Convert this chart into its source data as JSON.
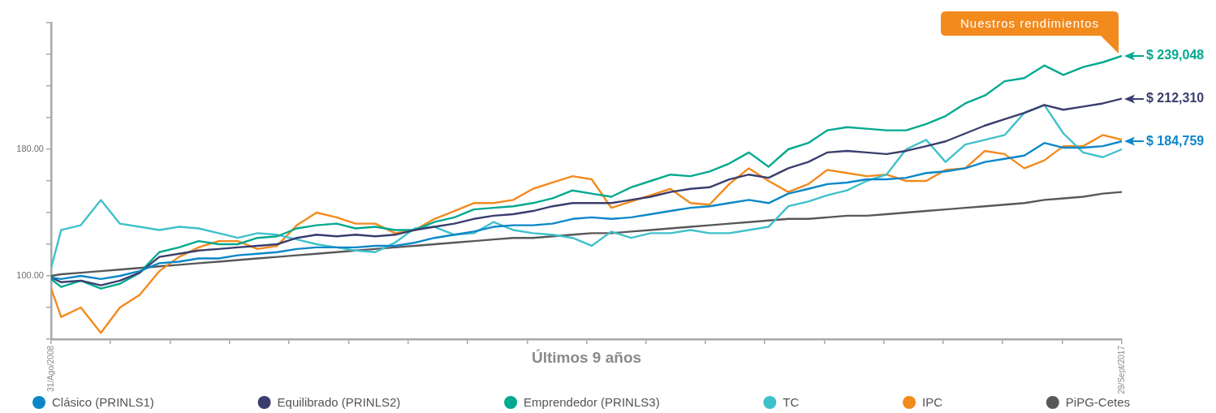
{
  "chart_data": {
    "type": "line",
    "xlabel": "Últimos 9 años",
    "legend": "bottom",
    "x": [
      "2008-08-31",
      "2008-10",
      "2008-12",
      "2009-02",
      "2009-04",
      "2009-06",
      "2009-08",
      "2009-10",
      "2009-12",
      "2010-02",
      "2010-04",
      "2010-06",
      "2010-08",
      "2010-10",
      "2010-12",
      "2011-02",
      "2011-04",
      "2011-06",
      "2011-08",
      "2011-10",
      "2011-12",
      "2012-02",
      "2012-04",
      "2012-06",
      "2012-08",
      "2012-10",
      "2012-12",
      "2013-02",
      "2013-04",
      "2013-06",
      "2013-08",
      "2013-10",
      "2013-12",
      "2014-02",
      "2014-04",
      "2014-06",
      "2014-08",
      "2014-10",
      "2014-12",
      "2015-02",
      "2015-04",
      "2015-06",
      "2015-08",
      "2015-10",
      "2015-12",
      "2016-02",
      "2016-04",
      "2016-06",
      "2016-08",
      "2016-10",
      "2016-12",
      "2017-02",
      "2017-04",
      "2017-06",
      "2017-08",
      "2017-09-29"
    ],
    "xlim": [
      "2008-08-31",
      "2017-09-29"
    ],
    "xticks": [
      {
        "value": "2008-08-31",
        "label": "31/Ago/2008"
      },
      {
        "value": "2009-03-03",
        "label": null
      },
      {
        "value": "2009-09-03",
        "label": null
      },
      {
        "value": "2010-03-07",
        "label": null
      },
      {
        "value": "2010-09-07",
        "label": null
      },
      {
        "value": "2011-03-10",
        "label": null
      },
      {
        "value": "2011-09-10",
        "label": null
      },
      {
        "value": "2012-03-12",
        "label": null
      },
      {
        "value": "2012-09-13",
        "label": null
      },
      {
        "value": "2013-03-16",
        "label": null
      },
      {
        "value": "2013-09-16",
        "label": null
      },
      {
        "value": "2014-03-19",
        "label": null
      },
      {
        "value": "2014-09-19",
        "label": null
      },
      {
        "value": "2015-03-22",
        "label": null
      },
      {
        "value": "2015-09-22",
        "label": null
      },
      {
        "value": "2016-03-24",
        "label": null
      },
      {
        "value": "2016-09-24",
        "label": null
      },
      {
        "value": "2017-03-28",
        "label": null
      },
      {
        "value": "2017-09-29",
        "label": "29/Sept/2017"
      }
    ],
    "ylim": [
      60,
      260
    ],
    "yticks": [
      {
        "value": 60,
        "label": null
      },
      {
        "value": 80,
        "label": null
      },
      {
        "value": 100,
        "label": "100.00"
      },
      {
        "value": 120,
        "label": null
      },
      {
        "value": 140,
        "label": null
      },
      {
        "value": 160,
        "label": null
      },
      {
        "value": 180,
        "label": "180.00"
      },
      {
        "value": 200,
        "label": null
      },
      {
        "value": 220,
        "label": null
      },
      {
        "value": 240,
        "label": null
      },
      {
        "value": 260,
        "label": null
      }
    ],
    "annotations": [
      "Nuestros rendimientos",
      {
        "text": "$ 239,048",
        "x": "2017-09-29",
        "y": 239
      },
      {
        "text": "$ 212,310",
        "x": "2017-09-29",
        "y": 212
      },
      {
        "text": "$ 184,759",
        "x": "2017-09-29",
        "y": 185
      }
    ],
    "series": [
      {
        "name": "Clásico (PRINLS1)",
        "color": "#0b87c8",
        "values": [
          99,
          98,
          100,
          98,
          100,
          103,
          108,
          109,
          111,
          111,
          113,
          114,
          115,
          117,
          118,
          118,
          118,
          119,
          119,
          121,
          124,
          126,
          128,
          131,
          132,
          132,
          133,
          136,
          137,
          136,
          137,
          139,
          141,
          143,
          144,
          146,
          148,
          146,
          152,
          155,
          158,
          159,
          161,
          161,
          162,
          165,
          166,
          168,
          172,
          174,
          176,
          184,
          181,
          181,
          182,
          185
        ]
      },
      {
        "name": "Equilibrado (PRINLS2)",
        "color": "#3a3d6e",
        "values": [
          99,
          96,
          97,
          94,
          97,
          102,
          112,
          114,
          116,
          117,
          118,
          119,
          120,
          124,
          126,
          125,
          126,
          125,
          126,
          129,
          131,
          133,
          136,
          138,
          139,
          141,
          144,
          146,
          146,
          146,
          148,
          150,
          153,
          155,
          156,
          161,
          164,
          162,
          168,
          172,
          178,
          179,
          178,
          177,
          179,
          182,
          185,
          190,
          195,
          199,
          203,
          208,
          205,
          207,
          209,
          212
        ]
      },
      {
        "name": "Emprendedor (PRINLS3)",
        "color": "#00a98f",
        "values": [
          98,
          93,
          97,
          92,
          95,
          102,
          115,
          118,
          122,
          120,
          120,
          124,
          125,
          130,
          132,
          133,
          130,
          131,
          129,
          129,
          134,
          137,
          142,
          143,
          144,
          146,
          149,
          154,
          152,
          150,
          156,
          160,
          164,
          163,
          166,
          171,
          178,
          169,
          180,
          184,
          192,
          194,
          193,
          192,
          192,
          196,
          201,
          209,
          214,
          223,
          225,
          233,
          227,
          232,
          235,
          239
        ]
      },
      {
        "name": "TC",
        "color": "#3fc1cb",
        "values": [
          105,
          129,
          132,
          148,
          133,
          131,
          129,
          131,
          130,
          127,
          124,
          127,
          126,
          123,
          120,
          118,
          116,
          115,
          121,
          130,
          131,
          126,
          127,
          134,
          129,
          127,
          126,
          124,
          119,
          128,
          124,
          127,
          127,
          129,
          127,
          127,
          129,
          131,
          144,
          147,
          151,
          154,
          160,
          164,
          180,
          186,
          172,
          183,
          186,
          189,
          203,
          208,
          190,
          178,
          175,
          180
        ]
      },
      {
        "name": "IPC",
        "color": "#f28a1e",
        "values": [
          92,
          74,
          80,
          64,
          80,
          88,
          103,
          112,
          118,
          122,
          122,
          117,
          119,
          132,
          140,
          137,
          133,
          133,
          127,
          129,
          136,
          141,
          146,
          146,
          148,
          155,
          159,
          163,
          161,
          143,
          147,
          151,
          155,
          146,
          145,
          158,
          168,
          160,
          153,
          158,
          167,
          165,
          163,
          164,
          160,
          160,
          167,
          168,
          179,
          177,
          168,
          173,
          182,
          182,
          189,
          186
        ]
      },
      {
        "name": "PiPG-Cetes",
        "color": "#58585a",
        "values": [
          100,
          101,
          102,
          103,
          104,
          105,
          106,
          107,
          108,
          109,
          110,
          111,
          112,
          113,
          114,
          115,
          116,
          117,
          118,
          119,
          120,
          121,
          122,
          123,
          124,
          124,
          125,
          126,
          127,
          127,
          128,
          129,
          130,
          131,
          132,
          133,
          134,
          135,
          136,
          136,
          137,
          138,
          138,
          139,
          140,
          141,
          142,
          143,
          144,
          145,
          146,
          148,
          149,
          150,
          152,
          153
        ]
      }
    ]
  }
}
